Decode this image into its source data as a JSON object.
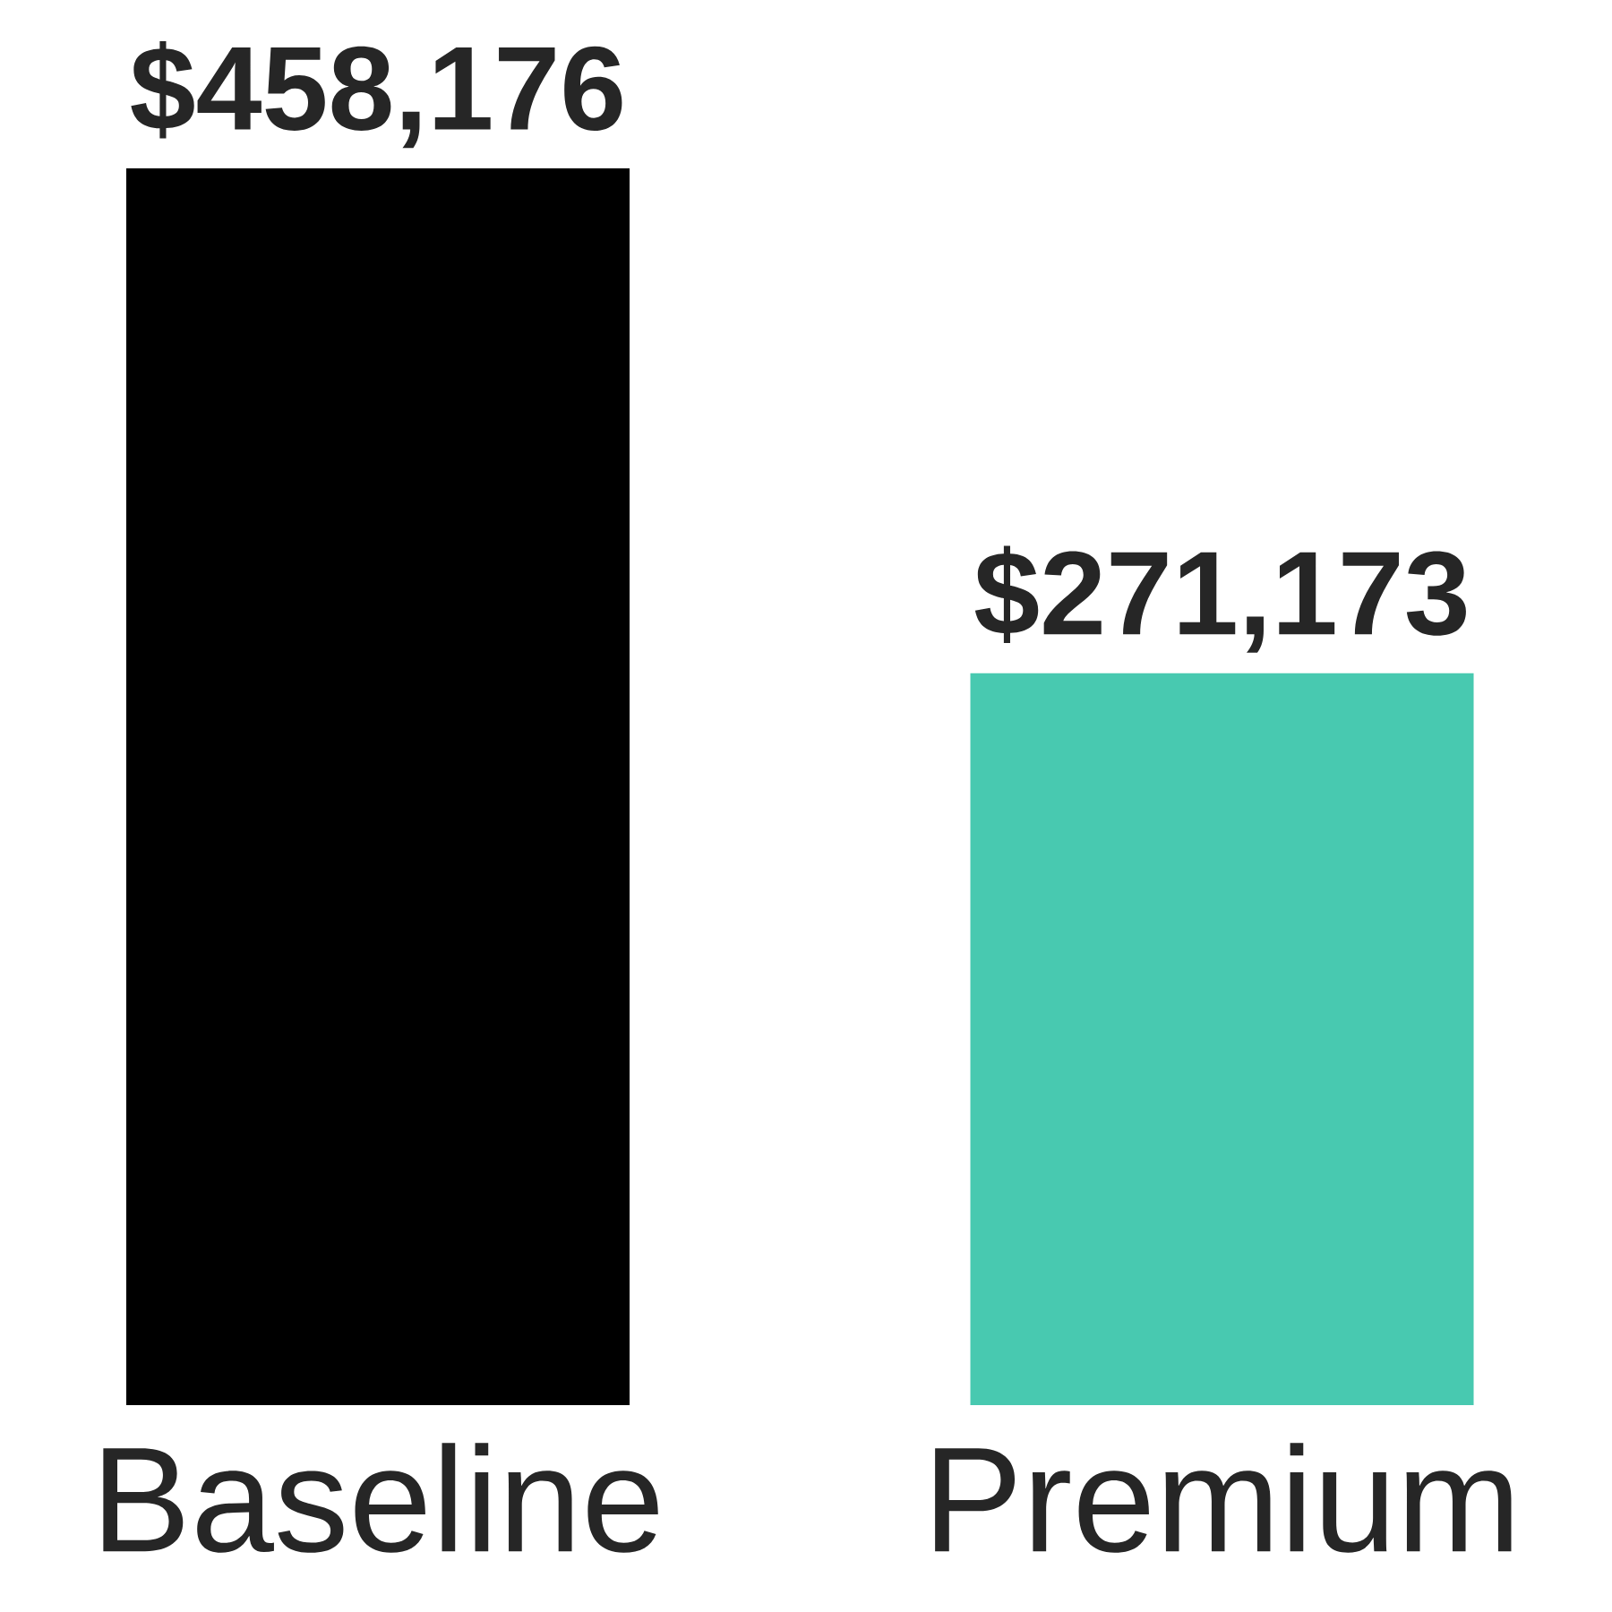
{
  "chart_data": {
    "type": "bar",
    "categories": [
      "Baseline",
      "Premium"
    ],
    "values": [
      458176,
      271173
    ],
    "colors": [
      "#000000",
      "#48c9b0"
    ],
    "value_labels": [
      "$458,176",
      "$271,173"
    ]
  }
}
